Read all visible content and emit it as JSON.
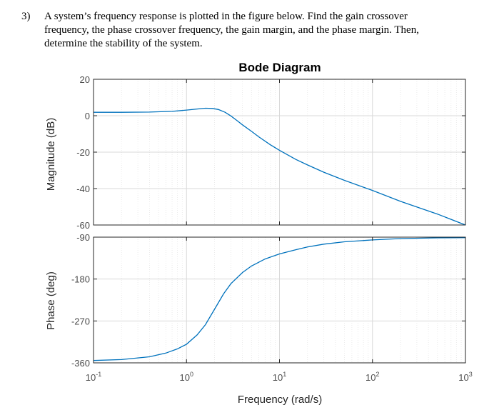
{
  "question": {
    "number": "3)",
    "lines": [
      "A system’s frequency response is plotted in the figure below. Find the gain crossover",
      "frequency, the phase crossover frequency, the gain margin, and the phase margin. Then,",
      "determine the stability of the system."
    ]
  },
  "chart_data": {
    "type": "line",
    "title": "Bode Diagram",
    "xlabel": "Frequency (rad/s)",
    "x_scale": "log",
    "xlim": [
      0.1,
      1000
    ],
    "x_ticks": [
      {
        "base": "10",
        "exp": "-1"
      },
      {
        "base": "10",
        "exp": "0"
      },
      {
        "base": "10",
        "exp": "1"
      },
      {
        "base": "10",
        "exp": "2"
      },
      {
        "base": "10",
        "exp": "3"
      }
    ],
    "grid": true,
    "line_color": "#0072bd",
    "magnitude": {
      "ylabel": "Magnitude (dB)",
      "ylim": [
        -60,
        20
      ],
      "y_ticks": [
        "20",
        "0",
        "-20",
        "-40",
        "-60"
      ],
      "points": [
        [
          0.1,
          1.9
        ],
        [
          0.2,
          1.9
        ],
        [
          0.4,
          2.0
        ],
        [
          0.7,
          2.4
        ],
        [
          1.0,
          3.1
        ],
        [
          1.3,
          3.7
        ],
        [
          1.6,
          4.1
        ],
        [
          1.9,
          4.0
        ],
        [
          2.2,
          3.4
        ],
        [
          2.6,
          1.9
        ],
        [
          3.0,
          -0.1
        ],
        [
          3.5,
          -2.7
        ],
        [
          4.0,
          -5.0
        ],
        [
          5.0,
          -8.6
        ],
        [
          6.0,
          -11.6
        ],
        [
          8.0,
          -16.0
        ],
        [
          10.0,
          -19.0
        ],
        [
          15.0,
          -24.0
        ],
        [
          20.0,
          -27.0
        ],
        [
          30.0,
          -31.0
        ],
        [
          50.0,
          -35.5
        ],
        [
          100.0,
          -41.0
        ],
        [
          200.0,
          -47.0
        ],
        [
          500.0,
          -54.0
        ],
        [
          1000.0,
          -60.0
        ]
      ]
    },
    "phase": {
      "ylabel": "Phase (deg)",
      "ylim": [
        -360,
        -90
      ],
      "y_ticks": [
        "-90",
        "-180",
        "-270",
        "-360"
      ],
      "points": [
        [
          0.1,
          -355
        ],
        [
          0.2,
          -353
        ],
        [
          0.4,
          -347
        ],
        [
          0.6,
          -339
        ],
        [
          0.8,
          -330
        ],
        [
          1.0,
          -320
        ],
        [
          1.3,
          -300
        ],
        [
          1.6,
          -278
        ],
        [
          2.0,
          -245
        ],
        [
          2.5,
          -212
        ],
        [
          3.0,
          -190
        ],
        [
          4.0,
          -166
        ],
        [
          5.0,
          -152
        ],
        [
          7.0,
          -137
        ],
        [
          10.0,
          -126
        ],
        [
          15.0,
          -117
        ],
        [
          20.0,
          -111
        ],
        [
          30.0,
          -105
        ],
        [
          50.0,
          -100
        ],
        [
          100.0,
          -96
        ],
        [
          200.0,
          -93
        ],
        [
          500.0,
          -91.5
        ],
        [
          1000.0,
          -91
        ]
      ]
    }
  }
}
